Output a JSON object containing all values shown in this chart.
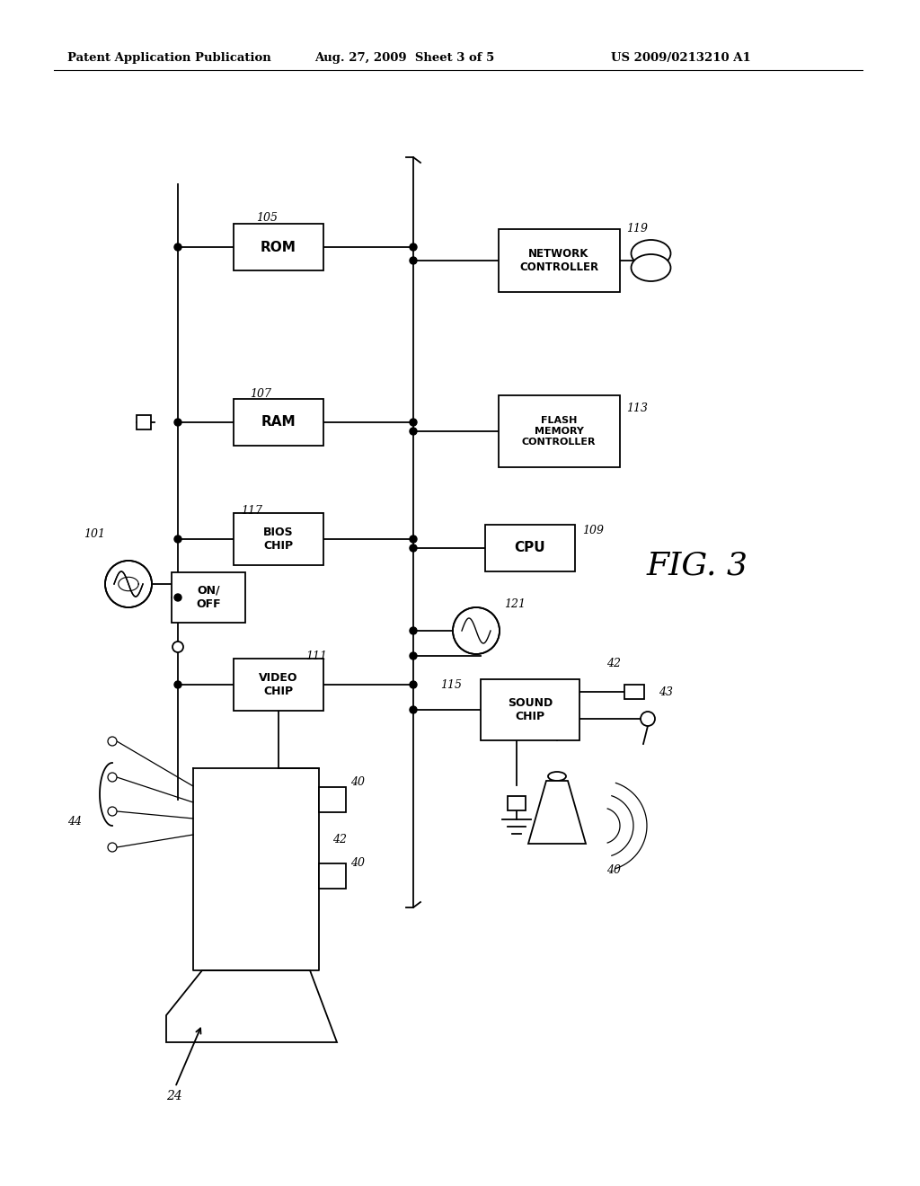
{
  "background_color": "#ffffff",
  "header_left": "Patent Application Publication",
  "header_mid": "Aug. 27, 2009  Sheet 3 of 5",
  "header_right": "US 2009/0213210 A1"
}
